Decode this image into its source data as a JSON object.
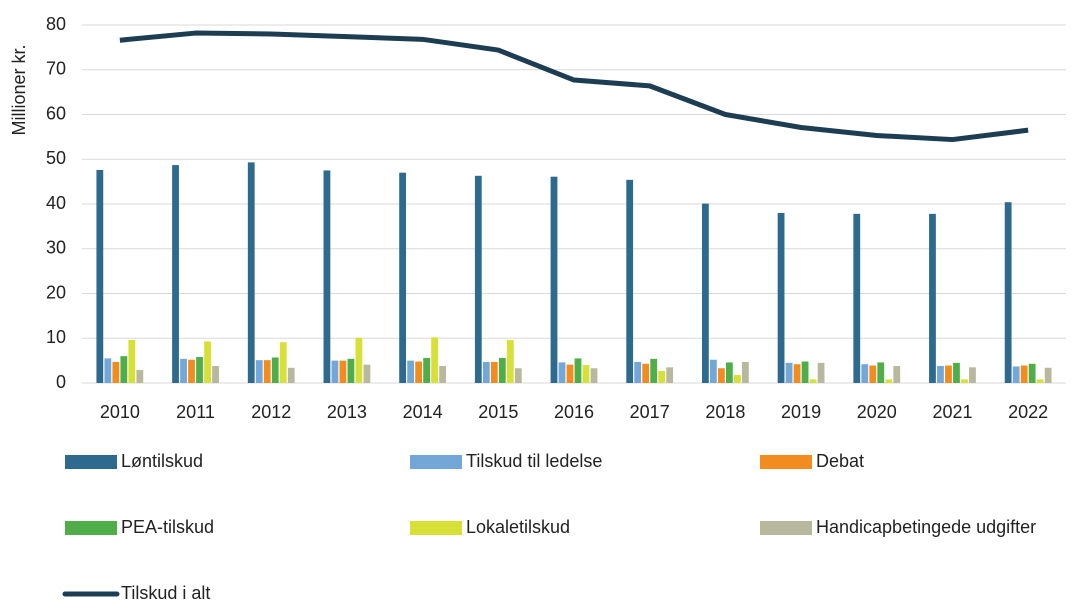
{
  "chart_data": {
    "type": "bar",
    "y_label": "Millioner kr.",
    "categories": [
      "2010",
      "2011",
      "2012",
      "2013",
      "2014",
      "2015",
      "2016",
      "2017",
      "2018",
      "2019",
      "2020",
      "2021",
      "2022"
    ],
    "ylim": [
      0,
      80
    ],
    "yticks": [
      0,
      10,
      20,
      30,
      40,
      50,
      60,
      70,
      80
    ],
    "grid": true,
    "series": [
      {
        "name": "Løntilskud",
        "color": "#2e6a8e",
        "values": [
          47.6,
          48.7,
          49.3,
          47.5,
          47.0,
          46.3,
          46.1,
          45.4,
          40.1,
          38.0,
          37.8,
          37.8,
          40.4
        ]
      },
      {
        "name": "Tilskud til ledelse",
        "color": "#72a7d8",
        "values": [
          5.5,
          5.4,
          5.1,
          5.0,
          5.0,
          4.7,
          4.6,
          4.7,
          5.2,
          4.5,
          4.2,
          3.8,
          3.7
        ]
      },
      {
        "name": "Debat",
        "color": "#f28c1e",
        "values": [
          4.7,
          5.2,
          5.1,
          5.0,
          4.8,
          4.7,
          4.1,
          4.3,
          3.3,
          4.2,
          3.9,
          3.9,
          3.9
        ]
      },
      {
        "name": "PEA-tilskud",
        "color": "#4fae4a",
        "values": [
          6.0,
          5.8,
          5.7,
          5.4,
          5.6,
          5.6,
          5.5,
          5.4,
          4.6,
          4.8,
          4.6,
          4.5,
          4.3
        ]
      },
      {
        "name": "Lokaletilskud",
        "color": "#d6e037",
        "values": [
          9.6,
          9.3,
          9.1,
          10.1,
          10.2,
          9.6,
          4.0,
          2.7,
          1.8,
          0.8,
          0.8,
          0.8,
          0.8
        ]
      },
      {
        "name": "Handicapbetingede udgifter",
        "color": "#b8b89f",
        "values": [
          2.9,
          3.8,
          3.4,
          4.1,
          3.8,
          3.3,
          3.3,
          3.5,
          4.7,
          4.5,
          3.8,
          3.5,
          3.4
        ]
      },
      {
        "name": "Tilskud i alt",
        "type": "line",
        "color": "#1d3d52",
        "values": [
          76.6,
          78.2,
          78.0,
          77.4,
          76.8,
          74.4,
          67.7,
          66.4,
          60.0,
          57.1,
          55.3,
          54.4,
          56.5
        ]
      }
    ]
  }
}
